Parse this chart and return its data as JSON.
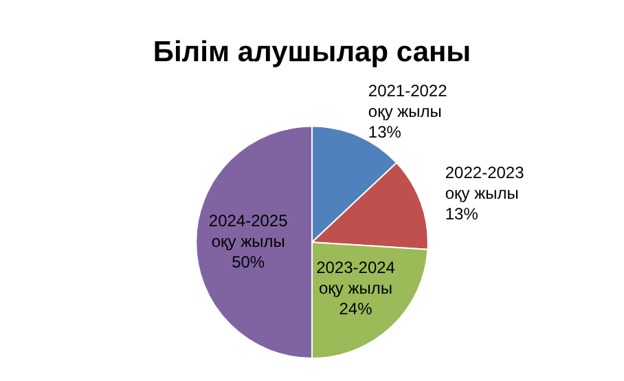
{
  "chart_data": {
    "type": "pie",
    "title": "Білім алушылар саны",
    "categories": [
      "2021-2022 оқу жылы",
      "2022-2023 оқу жылы",
      "2023-2024 оқу жылы",
      "2024-2025 оқу жылы"
    ],
    "values": [
      13,
      13,
      24,
      50
    ],
    "value_labels": [
      "13%",
      "13%",
      "24%",
      "50%"
    ],
    "colors": [
      "#4f81bd",
      "#c0504d",
      "#9bbb59",
      "#8064a2"
    ],
    "legend": false
  }
}
